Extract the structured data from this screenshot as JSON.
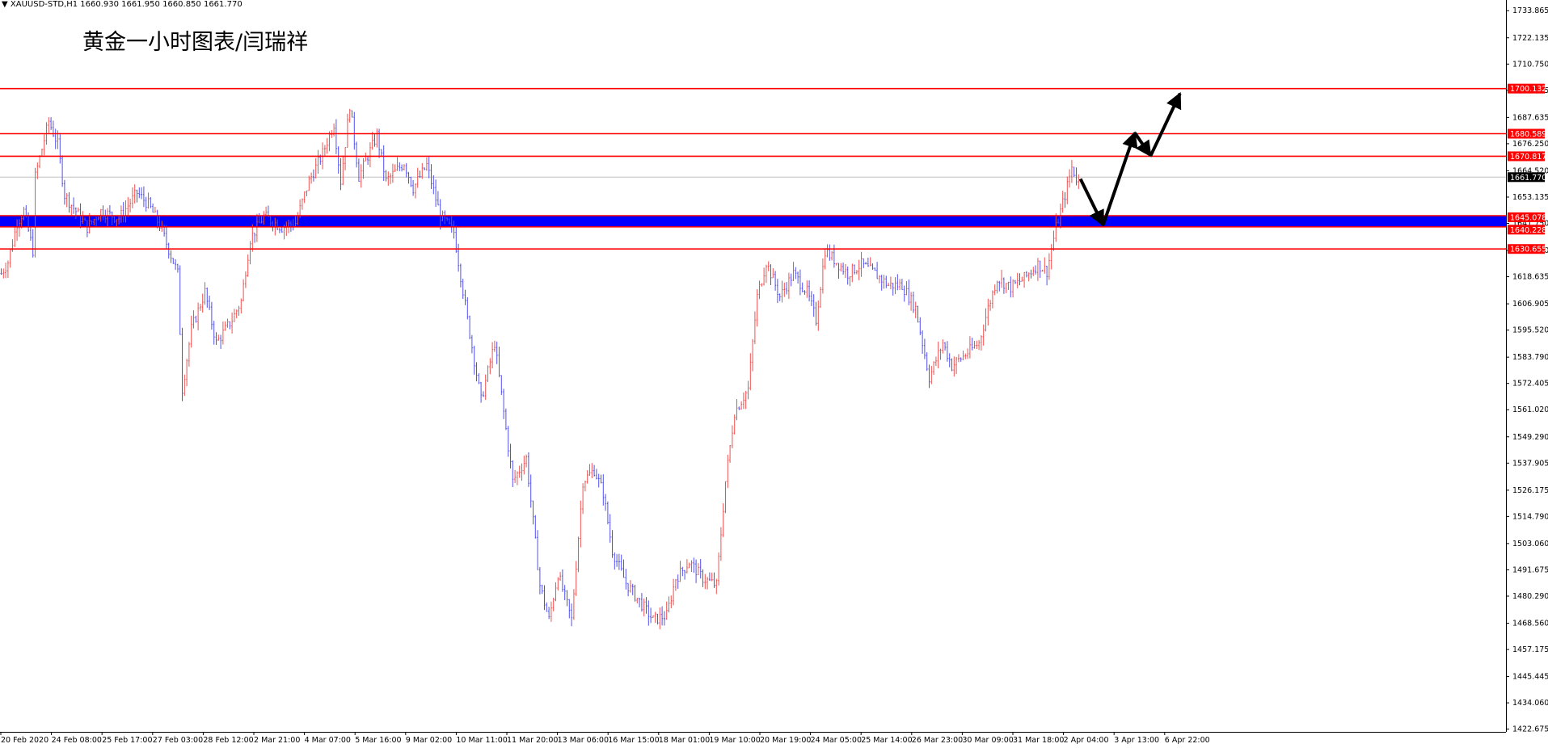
{
  "header": {
    "symbol": "XAUUSD-STD,H1",
    "ohlc": "1660.930 1661.950 1660.850 1661.770"
  },
  "annotation_title": "黄金一小时图表/闫瑞祥",
  "colors": {
    "background": "#ffffff",
    "bull_bar": "#f05050",
    "bear_bar": "#5050f0",
    "level_line": "#ff0000",
    "support_band": "#0000ff",
    "price_label_bg": "#ff0000",
    "current_label_bg": "#000000",
    "axis": "#000000",
    "arrows": "#000000"
  },
  "chart_data": {
    "type": "ohlc",
    "symbol": "XAUUSD-STD",
    "timeframe": "H1",
    "current_price": 1661.77,
    "ylim": [
      1421.5,
      1738.5
    ],
    "y_ticks": [
      "1733.865",
      "1722.135",
      "1710.750",
      "1699.365",
      "1687.635",
      "1676.250",
      "1664.520",
      "1653.135",
      "1641.750",
      "1630.020",
      "1618.635",
      "1606.905",
      "1595.520",
      "1583.790",
      "1572.405",
      "1561.020",
      "1549.290",
      "1537.905",
      "1526.175",
      "1514.790",
      "1503.060",
      "1491.675",
      "1480.290",
      "1468.560",
      "1457.175",
      "1445.445",
      "1434.060",
      "1422.675"
    ],
    "x_ticks": [
      "20 Feb 2020",
      "24 Feb 08:00",
      "25 Feb 17:00",
      "27 Feb 03:00",
      "28 Feb 12:00",
      "2 Mar 21:00",
      "4 Mar 07:00",
      "5 Mar 16:00",
      "9 Mar 02:00",
      "10 Mar 11:00",
      "11 Mar 20:00",
      "13 Mar 06:00",
      "16 Mar 15:00",
      "18 Mar 01:00",
      "19 Mar 10:00",
      "20 Mar 19:00",
      "24 Mar 05:00",
      "25 Mar 14:00",
      "26 Mar 23:00",
      "30 Mar 09:00",
      "31 Mar 18:00",
      "2 Apr 04:00",
      "3 Apr 13:00",
      "6 Apr 22:00"
    ],
    "price_path": [
      [
        0,
        1620
      ],
      [
        3,
        1625
      ],
      [
        7,
        1642
      ],
      [
        10,
        1647
      ],
      [
        14,
        1630
      ],
      [
        15,
        1662
      ],
      [
        21,
        1686
      ],
      [
        25,
        1676
      ],
      [
        28,
        1654
      ],
      [
        38,
        1640
      ],
      [
        44,
        1647
      ],
      [
        52,
        1644
      ],
      [
        60,
        1655
      ],
      [
        65,
        1650
      ],
      [
        70,
        1641
      ],
      [
        78,
        1620
      ],
      [
        80,
        1570
      ],
      [
        84,
        1596
      ],
      [
        90,
        1612
      ],
      [
        95,
        1590
      ],
      [
        102,
        1600
      ],
      [
        106,
        1608
      ],
      [
        110,
        1635
      ],
      [
        116,
        1645
      ],
      [
        124,
        1640
      ],
      [
        130,
        1642
      ],
      [
        136,
        1660
      ],
      [
        142,
        1672
      ],
      [
        147,
        1685
      ],
      [
        150,
        1660
      ],
      [
        154,
        1693
      ],
      [
        158,
        1662
      ],
      [
        166,
        1680
      ],
      [
        170,
        1660
      ],
      [
        178,
        1668
      ],
      [
        182,
        1657
      ],
      [
        188,
        1667
      ],
      [
        194,
        1645
      ],
      [
        200,
        1638
      ],
      [
        206,
        1600
      ],
      [
        212,
        1565
      ],
      [
        218,
        1590
      ],
      [
        222,
        1560
      ],
      [
        226,
        1530
      ],
      [
        232,
        1540
      ],
      [
        238,
        1485
      ],
      [
        242,
        1470
      ],
      [
        246,
        1490
      ],
      [
        252,
        1470
      ],
      [
        257,
        1530
      ],
      [
        262,
        1535
      ],
      [
        266,
        1525
      ],
      [
        270,
        1500
      ],
      [
        276,
        1486
      ],
      [
        282,
        1478
      ],
      [
        288,
        1470
      ],
      [
        294,
        1472
      ],
      [
        298,
        1488
      ],
      [
        304,
        1495
      ],
      [
        310,
        1488
      ],
      [
        316,
        1485
      ],
      [
        320,
        1530
      ],
      [
        324,
        1560
      ],
      [
        330,
        1570
      ],
      [
        334,
        1610
      ],
      [
        338,
        1625
      ],
      [
        344,
        1610
      ],
      [
        350,
        1620
      ],
      [
        356,
        1612
      ],
      [
        360,
        1600
      ],
      [
        364,
        1630
      ],
      [
        368,
        1626
      ],
      [
        374,
        1620
      ],
      [
        380,
        1624
      ],
      [
        386,
        1620
      ],
      [
        392,
        1615
      ],
      [
        398,
        1615
      ],
      [
        404,
        1605
      ],
      [
        410,
        1575
      ],
      [
        416,
        1590
      ],
      [
        420,
        1580
      ],
      [
        426,
        1585
      ],
      [
        432,
        1590
      ],
      [
        436,
        1605
      ],
      [
        440,
        1618
      ],
      [
        446,
        1614
      ],
      [
        452,
        1618
      ],
      [
        458,
        1624
      ],
      [
        462,
        1621
      ],
      [
        466,
        1640
      ],
      [
        470,
        1654
      ],
      [
        473,
        1666
      ],
      [
        476,
        1659
      ]
    ],
    "levels": [
      {
        "label": "1700.132",
        "value": 1700.132
      },
      {
        "label": "1680.589",
        "value": 1680.589
      },
      {
        "label": "1670.817",
        "value": 1670.817
      },
      {
        "label": "1630.655",
        "value": 1630.655
      }
    ],
    "support_zone": {
      "label_top": "1645.078",
      "label_bottom": "1640.228",
      "top": 1645.078,
      "bottom": 1640.228
    },
    "current_label": "1661.770",
    "projection_arrows": [
      {
        "from_bar": 477,
        "from_price": 1661,
        "to_bar": 487,
        "to_price": 1641
      },
      {
        "from_bar": 487,
        "from_price": 1641,
        "to_bar": 501,
        "to_price": 1681
      },
      {
        "from_bar": 501,
        "from_price": 1681,
        "to_bar": 508,
        "to_price": 1671
      },
      {
        "from_bar": 508,
        "from_price": 1671,
        "to_bar": 521,
        "to_price": 1698
      }
    ],
    "grid": false,
    "legend": "none"
  }
}
